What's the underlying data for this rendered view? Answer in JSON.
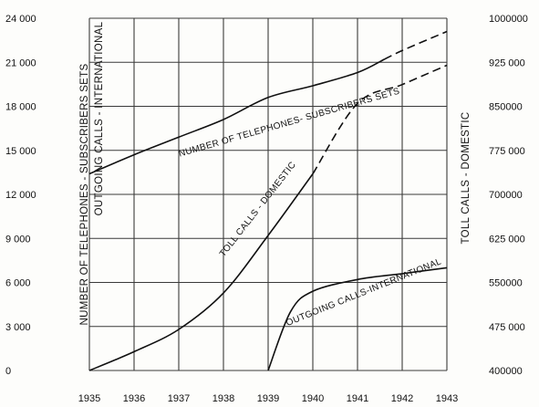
{
  "chart_data": {
    "type": "line",
    "title": "",
    "x": [
      1935,
      1936,
      1937,
      1938,
      1939,
      1940,
      1941,
      1942,
      1943
    ],
    "x_tick_labels": [
      "1935",
      "1936",
      "1937",
      "1938",
      "1939",
      "1940",
      "1941",
      "1942",
      "1943"
    ],
    "xlim": [
      1935,
      1943
    ],
    "left_axis": {
      "ylabel": "NUMBER OF TELEPHONES - SUBSCRIBERS SETS",
      "ylabel_secondary": "OUTGOING CALLS - INTERNATIONAL",
      "ylim": [
        0,
        24000
      ],
      "tick_values": [
        0,
        3000,
        6000,
        9000,
        12000,
        15000,
        18000,
        21000,
        24000
      ],
      "tick_labels": [
        "0",
        "3 000",
        "6 000",
        "9 000",
        "12 000",
        "15 000",
        "18 000",
        "21 000",
        "24 000"
      ]
    },
    "right_axis": {
      "ylabel": "TOLL CALLS - DOMESTIC",
      "ylim": [
        400000,
        1000000
      ],
      "tick_values": [
        400000,
        475000,
        550000,
        625000,
        700000,
        775000,
        850000,
        925000,
        1000000
      ],
      "tick_labels": [
        "400000",
        "475 000",
        "550000",
        "625 000",
        "700000",
        "775 000",
        "850000",
        "925 000",
        "1000000"
      ]
    },
    "grid": true,
    "series": [
      {
        "name": "NUMBER OF TELEPHONES - SUBSCRIBERS SETS",
        "axis": "left",
        "x": [
          1935,
          1936,
          1937,
          1938,
          1939,
          1940,
          1941,
          1942,
          1943
        ],
        "values": [
          13400,
          14700,
          15900,
          17100,
          18600,
          19400,
          20300,
          21800,
          23100
        ],
        "dashed_from": 1941.6
      },
      {
        "name": "TOLL CALLS - DOMESTIC",
        "axis": "right",
        "x": [
          1935,
          1936,
          1937,
          1938,
          1939,
          1940,
          1941,
          1942,
          1943
        ],
        "values": [
          400000,
          432000,
          470000,
          532000,
          630000,
          735000,
          855000,
          887000,
          920000
        ],
        "dashed_from": 1940.0
      },
      {
        "name": "OUTGOING CALLS - INTERNATIONAL",
        "axis": "left",
        "x": [
          1939,
          1939.5,
          1940,
          1941,
          1942,
          1943
        ],
        "values": [
          0,
          4000,
          5400,
          6200,
          6600,
          7000
        ],
        "dashed_from": null
      }
    ],
    "curve_labels": [
      "NUMBER OF TELEPHONES- SUBSCRIBERS SETS",
      "TOLL CALLS - DOMESTIC",
      "OUTGOING CALLS-INTERNATIONAL"
    ]
  }
}
